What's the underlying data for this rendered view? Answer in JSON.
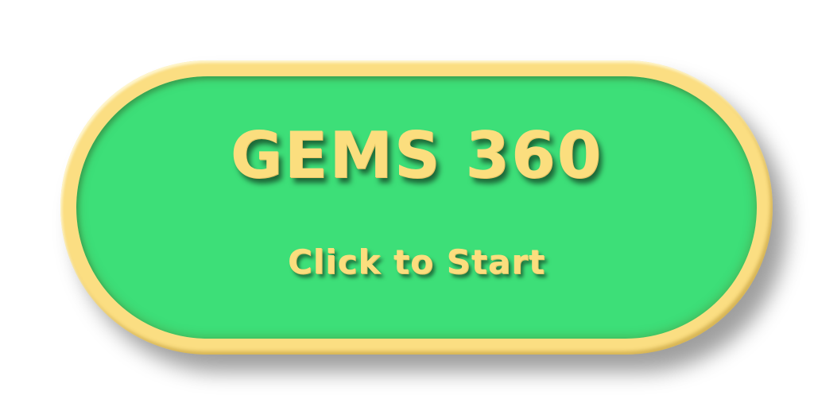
{
  "title_screen": {
    "title": "GEMS 360",
    "start_label": "Click to Start"
  },
  "colors": {
    "button_fill": "#3ddf78",
    "button_rim": "#fbde82",
    "text": "#fbde7e",
    "background": "#ffffff"
  }
}
